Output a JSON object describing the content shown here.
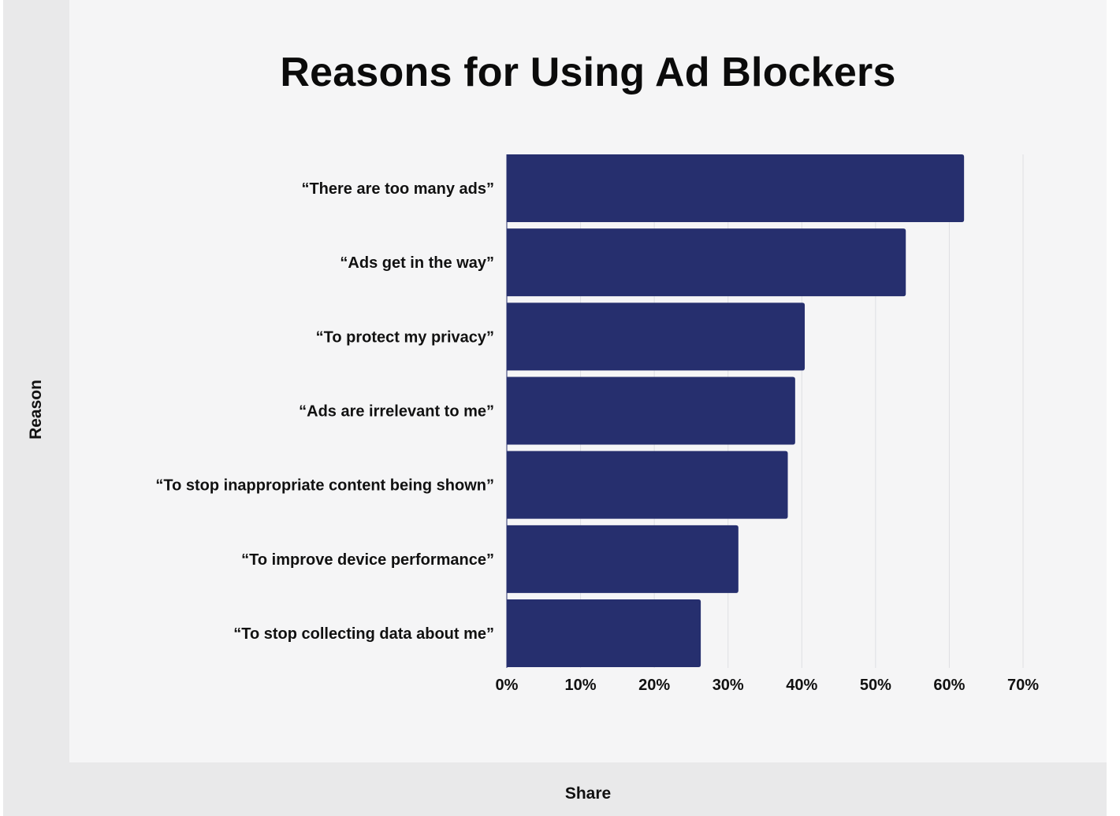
{
  "chart_data": {
    "type": "bar",
    "orientation": "horizontal",
    "title": "Reasons for Using Ad Blockers",
    "xlabel": "Share",
    "ylabel": "Reason",
    "categories": [
      "“There are too many ads”",
      "“Ads get in the way”",
      "“To protect my privacy”",
      "“Ads are irrelevant to me”",
      "“To stop inappropriate content being shown”",
      "“To improve device performance”",
      "“To stop collecting data about me”"
    ],
    "values": [
      62,
      54.1,
      40.4,
      39.1,
      38.1,
      31.4,
      26.3
    ],
    "xlim": [
      0,
      70
    ],
    "xticks": [
      "0%",
      "10%",
      "20%",
      "30%",
      "40%",
      "50%",
      "60%",
      "70%"
    ],
    "grid": true,
    "bar_color": "#262f6e",
    "grid_color": "#dedfe3"
  }
}
